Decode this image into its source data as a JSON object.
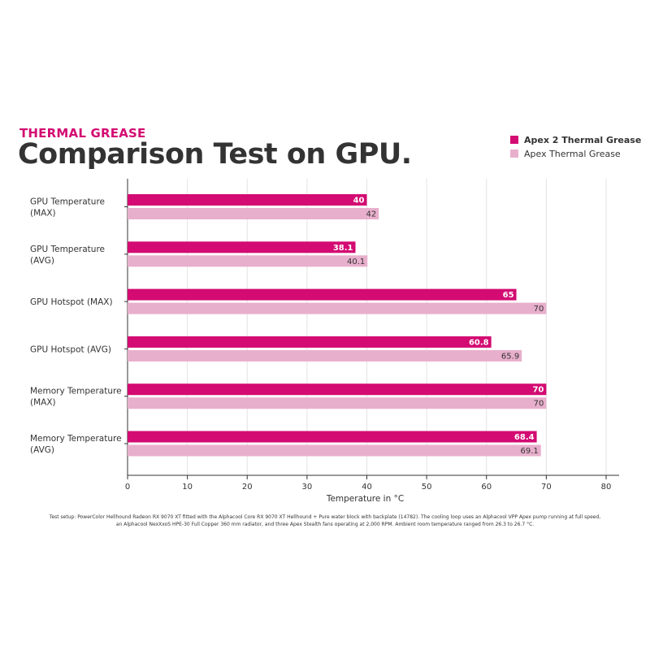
{
  "header": {
    "eyebrow": "THERMAL GREASE",
    "title": "Comparison Test on GPU."
  },
  "colors": {
    "accent": "#d30b72",
    "series1": "#d30b72",
    "series2": "#e8afcc",
    "axis": "#333333",
    "grid": "#e3e3e3"
  },
  "chart_data": {
    "type": "bar",
    "orientation": "horizontal",
    "categories": [
      [
        "GPU Temperature",
        "(MAX)"
      ],
      [
        "GPU Temperature",
        "(AVG)"
      ],
      [
        "GPU Hotspot (MAX)"
      ],
      [
        "GPU Hotspot (AVG)"
      ],
      [
        "Memory Temperature",
        "(MAX)"
      ],
      [
        "Memory Temperature",
        "(AVG)"
      ]
    ],
    "series": [
      {
        "name": "Apex 2 Thermal Grease",
        "values": [
          40,
          38.1,
          65,
          60.8,
          70,
          68.4
        ],
        "labels": [
          "40",
          "38.1",
          "65",
          "60.8",
          "70",
          "68.4"
        ]
      },
      {
        "name": "Apex Thermal Grease",
        "values": [
          42,
          40.1,
          70,
          65.9,
          70,
          69.1
        ],
        "labels": [
          "42",
          "40.1",
          "70",
          "65.9",
          "70",
          "69.1"
        ]
      }
    ],
    "xlabel": "Temperature in °C",
    "xlim": [
      0,
      82
    ],
    "xticks": [
      0,
      10,
      20,
      30,
      40,
      50,
      60,
      70,
      80
    ],
    "grid": true,
    "legend": "top-right"
  },
  "footnote": "Test setup: PowerColor Hellhound Radeon RX 9070 XT fitted with the Alphacool Core RX 9070 XT Hellhound + Pure water block with backplate (14782). The cooling loop uses an Alphacool VPP Apex pump running at full speed, an Alphacool NexXxoS HPE-30 Full Copper 360 mm radiator, and three Apex Stealth fans operating at 2,000 RPM. Ambient room temperature ranged from 26.3 to 26.7 °C."
}
